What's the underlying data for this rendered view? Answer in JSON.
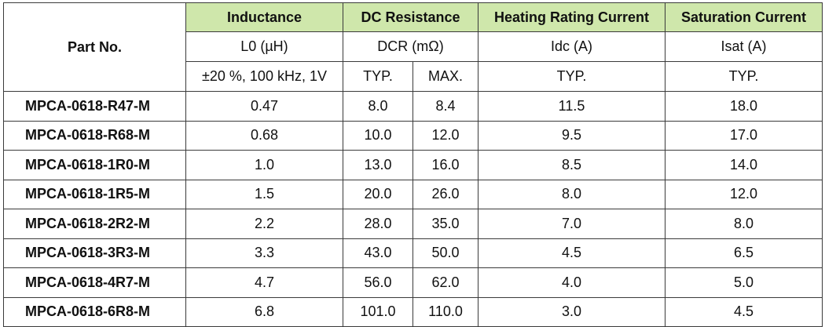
{
  "header": {
    "part_no": "Part No.",
    "groups": {
      "inductance": "Inductance",
      "dc_resistance": "DC Resistance",
      "heating": "Heating Rating Current",
      "saturation": "Saturation Current"
    },
    "symbols": {
      "inductance": "L0 (µH)",
      "dc_resistance": "DCR (mΩ)",
      "heating": "Idc (A)",
      "saturation": "Isat (A)"
    },
    "conditions": {
      "inductance": "±20 %, 100 kHz, 1V",
      "dcr_typ": "TYP.",
      "dcr_max": "MAX.",
      "heating": "TYP.",
      "saturation": "TYP."
    }
  },
  "rows": [
    {
      "part": "MPCA-0618-R47-M",
      "l0": "0.47",
      "dcr_typ": "8.0",
      "dcr_max": "8.4",
      "idc": "11.5",
      "isat": "18.0"
    },
    {
      "part": "MPCA-0618-R68-M",
      "l0": "0.68",
      "dcr_typ": "10.0",
      "dcr_max": "12.0",
      "idc": "9.5",
      "isat": "17.0"
    },
    {
      "part": "MPCA-0618-1R0-M",
      "l0": "1.0",
      "dcr_typ": "13.0",
      "dcr_max": "16.0",
      "idc": "8.5",
      "isat": "14.0"
    },
    {
      "part": "MPCA-0618-1R5-M",
      "l0": "1.5",
      "dcr_typ": "20.0",
      "dcr_max": "26.0",
      "idc": "8.0",
      "isat": "12.0"
    },
    {
      "part": "MPCA-0618-2R2-M",
      "l0": "2.2",
      "dcr_typ": "28.0",
      "dcr_max": "35.0",
      "idc": "7.0",
      "isat": "8.0"
    },
    {
      "part": "MPCA-0618-3R3-M",
      "l0": "3.3",
      "dcr_typ": "43.0",
      "dcr_max": "50.0",
      "idc": "4.5",
      "isat": "6.5"
    },
    {
      "part": "MPCA-0618-4R7-M",
      "l0": "4.7",
      "dcr_typ": "56.0",
      "dcr_max": "62.0",
      "idc": "4.0",
      "isat": "5.0"
    },
    {
      "part": "MPCA-0618-6R8-M",
      "l0": "6.8",
      "dcr_typ": "101.0",
      "dcr_max": "110.0",
      "idc": "3.0",
      "isat": "4.5"
    }
  ],
  "colors": {
    "header_fill": "#cfe7ab",
    "border": "#3a3a3a"
  }
}
